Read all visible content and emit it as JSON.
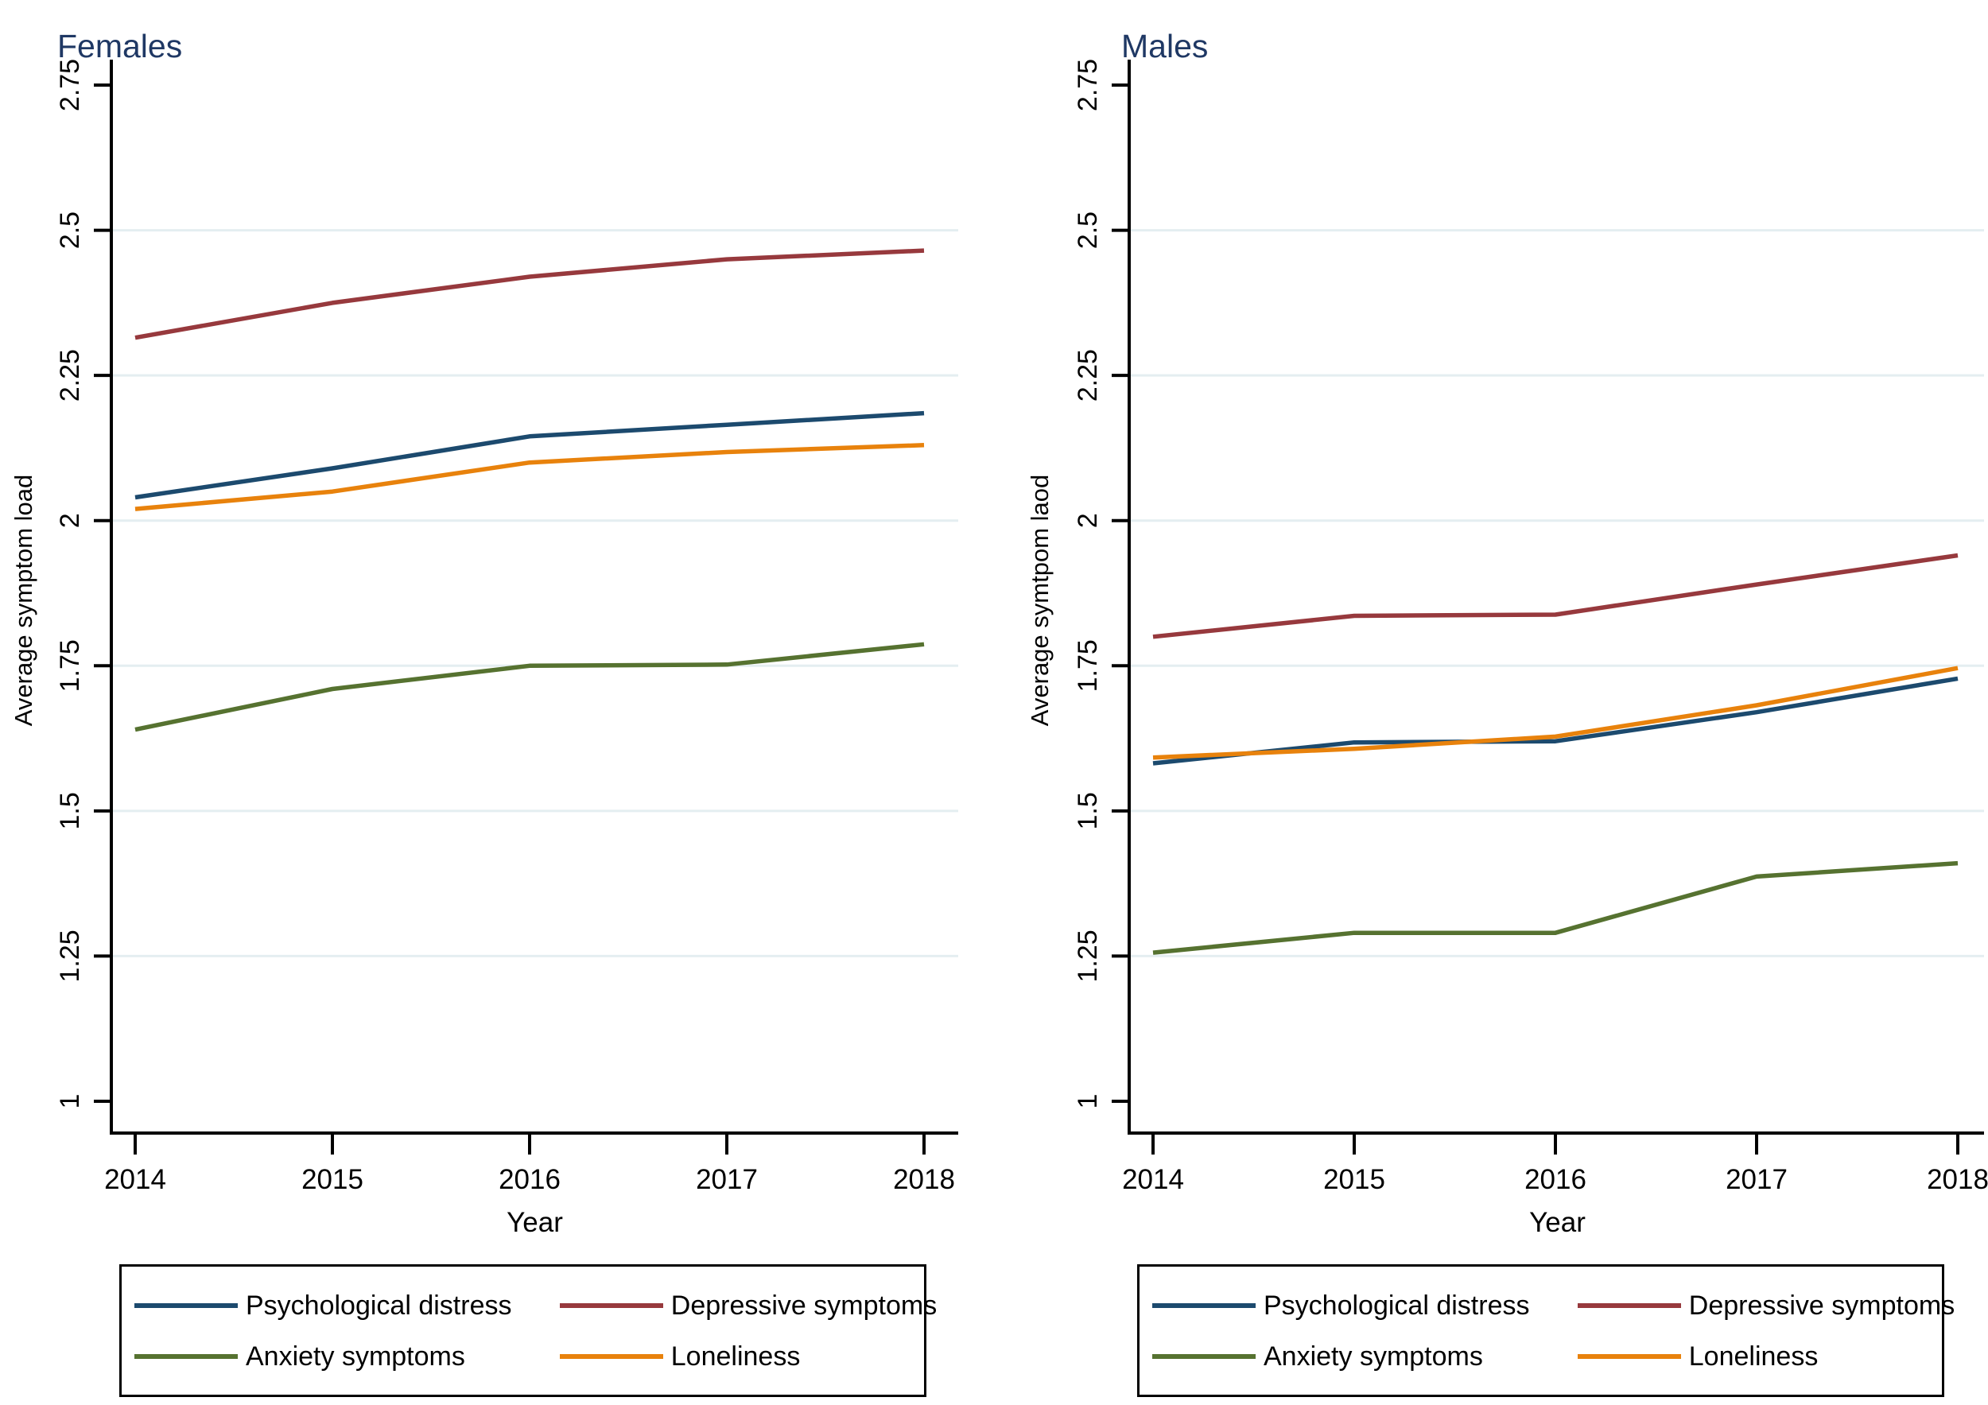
{
  "style": {
    "title_color": "#1f3864",
    "axis_color": "#000000",
    "grid_color": "#e4eef1",
    "background": "#ffffff",
    "series_colors": {
      "psychological_distress": "#1c4a6e",
      "depressive_symptoms": "#97393d",
      "anxiety_symptoms": "#567230",
      "loneliness": "#e8820c"
    }
  },
  "chart_data": [
    {
      "type": "line",
      "title": "Females",
      "xlabel": "Year",
      "ylabel": "Average symptom load",
      "x": [
        2014,
        2015,
        2016,
        2017,
        2018
      ],
      "x_tick_labels": [
        "2014",
        "2015",
        "2016",
        "2017",
        "2018"
      ],
      "ylim": [
        1,
        2.75
      ],
      "y_ticks": [
        2.75,
        2.5,
        2.25,
        2,
        1.75,
        1.5,
        1.25,
        1
      ],
      "y_tick_labels": [
        "2.75",
        "2.5",
        "2.25",
        "2",
        "1.75",
        "1.5",
        "1.25",
        "1"
      ],
      "grid_values": [
        2.5,
        2.25,
        2,
        1.75,
        1.5,
        1.25
      ],
      "grid": "horizontal-only",
      "legend_position": "bottom-boxed",
      "series": [
        {
          "name": "Psychological distress",
          "color": "#1c4a6e",
          "values": [
            2.04,
            2.09,
            2.145,
            2.165,
            2.185
          ]
        },
        {
          "name": "Depressive symptoms",
          "color": "#97393d",
          "values": [
            2.315,
            2.375,
            2.42,
            2.45,
            2.465
          ]
        },
        {
          "name": "Anxiety symptoms",
          "color": "#567230",
          "values": [
            1.64,
            1.71,
            1.75,
            1.752,
            1.787
          ]
        },
        {
          "name": "Loneliness",
          "color": "#e8820c",
          "values": [
            2.02,
            2.05,
            2.1,
            2.118,
            2.13
          ]
        }
      ]
    },
    {
      "type": "line",
      "title": "Males",
      "xlabel": "Year",
      "ylabel": "Average symtpom laod",
      "x": [
        2014,
        2015,
        2016,
        2017,
        2018
      ],
      "x_tick_labels": [
        "2014",
        "2015",
        "2016",
        "2017",
        "2018"
      ],
      "ylim": [
        1,
        2.75
      ],
      "y_ticks": [
        2.75,
        2.5,
        2.25,
        2,
        1.75,
        1.5,
        1.25,
        1
      ],
      "y_tick_labels": [
        "2.75",
        "2.5",
        "2.25",
        "2",
        "1.75",
        "1.5",
        "1.25",
        "1"
      ],
      "grid_values": [
        2.5,
        2.25,
        2,
        1.75,
        1.5,
        1.25
      ],
      "grid": "horizontal-only",
      "legend_position": "bottom-boxed",
      "series": [
        {
          "name": "Psychological distress",
          "color": "#1c4a6e",
          "values": [
            1.582,
            1.618,
            1.62,
            1.67,
            1.728
          ]
        },
        {
          "name": "Depressive symptoms",
          "color": "#97393d",
          "values": [
            1.8,
            1.836,
            1.838,
            1.89,
            1.94
          ]
        },
        {
          "name": "Anxiety symptoms",
          "color": "#567230",
          "values": [
            1.256,
            1.29,
            1.29,
            1.387,
            1.41
          ]
        },
        {
          "name": "Loneliness",
          "color": "#e8820c",
          "values": [
            1.592,
            1.607,
            1.628,
            1.682,
            1.746
          ]
        }
      ]
    }
  ]
}
